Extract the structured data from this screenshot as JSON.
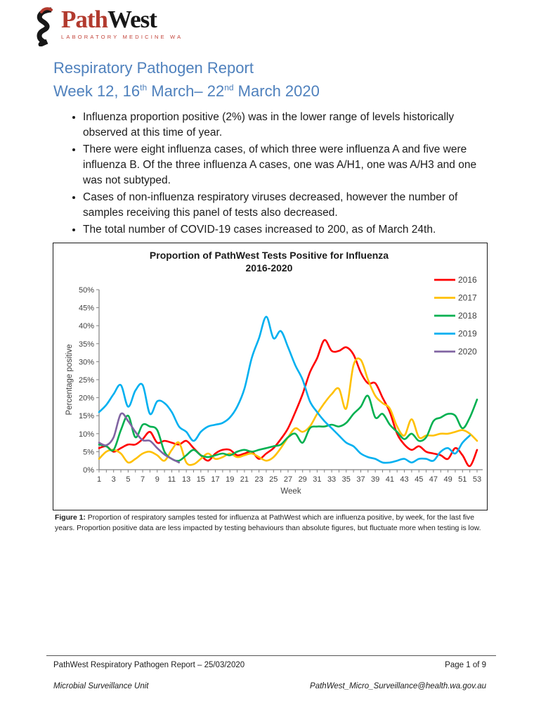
{
  "logo": {
    "brand_part1": "Path",
    "brand_part2": "West",
    "tagline": "LABORATORY MEDICINE WA"
  },
  "title": {
    "line1": "Respiratory Pathogen Report",
    "week_prefix": "Week 12, 16",
    "sup1": "th",
    "mid": " March– 22",
    "sup2": "nd",
    "end": " March 2020"
  },
  "bullets": [
    "Influenza proportion positive (2%) was in the lower range of levels historically observed at this time of year.",
    "There were eight influenza cases, of which three were influenza A and five were influenza B. Of the three influenza A cases, one was A/H1, one was A/H3 and one was not subtyped.",
    "Cases of non-influenza respiratory viruses decreased, however the number of samples receiving this panel of tests also decreased.",
    "The total number of COVID-19 cases increased to 200, as of March 24th."
  ],
  "figure": {
    "caption_label": "Figure 1:",
    "caption_text": " Proportion of respiratory samples tested for influenza at PathWest which are influenza positive, by week, for the last five years. Proportion positive data are less impacted by testing behaviours than absolute figures, but fluctuate more when testing is low."
  },
  "footer": {
    "left1": "PathWest Respiratory Pathogen Report – 25/03/2020",
    "right1": "Page 1 of 9",
    "left2": "Microbial Surveillance Unit",
    "right2": "PathWest_Micro_Surveillance@health.wa.gov.au"
  },
  "chart_data": {
    "type": "line",
    "title": "Proportion of PathWest Tests Positive for Influenza",
    "subtitle": "2016-2020",
    "xlabel": "Week",
    "ylabel": "Percentage positive",
    "ylim": [
      0,
      50
    ],
    "ytick_step": 5,
    "ytick_suffix": "%",
    "x_range": [
      1,
      53
    ],
    "xtick_labels": [
      1,
      3,
      5,
      7,
      9,
      11,
      13,
      15,
      17,
      19,
      21,
      23,
      25,
      27,
      29,
      31,
      33,
      35,
      37,
      39,
      41,
      43,
      45,
      47,
      49,
      51,
      53
    ],
    "grid": false,
    "legend_position": "right-top",
    "series": [
      {
        "name": "2016",
        "color": "#FF0000",
        "start_week": 1,
        "values": [
          6,
          6.5,
          5,
          6,
          7,
          7,
          8.5,
          10.5,
          7.5,
          8,
          7.5,
          7,
          8,
          6,
          4,
          2.5,
          4.5,
          5.5,
          5.5,
          4,
          4.5,
          5,
          3,
          4.5,
          6,
          8.5,
          11.5,
          16,
          21,
          27,
          31,
          36,
          33,
          33,
          34,
          32,
          27,
          24,
          24,
          20,
          16,
          10,
          7,
          5.5,
          6.5,
          5,
          4.5,
          4,
          3,
          6,
          4,
          1,
          5.5
        ]
      },
      {
        "name": "2017",
        "color": "#FFC000",
        "start_week": 1,
        "values": [
          3,
          5,
          5.5,
          4.5,
          2,
          3,
          4.5,
          5,
          4,
          2.5,
          5.5,
          7.5,
          2,
          1.5,
          3,
          4.5,
          3,
          3.5,
          4.5,
          3.5,
          4,
          4.5,
          3.5,
          2.5,
          3.5,
          6,
          9,
          11.5,
          10.5,
          12,
          15.5,
          18.5,
          21,
          22.5,
          17,
          29,
          30.5,
          25,
          20.5,
          18.5,
          17,
          12,
          9.5,
          14,
          9,
          9.5,
          9.5,
          10,
          10,
          10.5,
          11,
          10,
          8
        ]
      },
      {
        "name": "2018",
        "color": "#00B050",
        "start_week": 1,
        "values": [
          7,
          6.5,
          5.5,
          11,
          15,
          9,
          12.5,
          12,
          11,
          5,
          3,
          2.5,
          4,
          5.5,
          4,
          3.5,
          4,
          4.5,
          4,
          5,
          5.5,
          5,
          5.5,
          6,
          6.5,
          7,
          9,
          10,
          7.5,
          11.5,
          12,
          12,
          12.5,
          12,
          13,
          15.5,
          17.5,
          20.5,
          14.5,
          15.5,
          12.5,
          10.5,
          8.5,
          10,
          8,
          9,
          13.5,
          14.5,
          15.5,
          15,
          11.5,
          14.5,
          19.5
        ]
      },
      {
        "name": "2019",
        "color": "#00B0F0",
        "start_week": 1,
        "values": [
          16,
          18,
          21,
          23.5,
          17.5,
          22,
          23.5,
          15.5,
          19,
          18.5,
          16,
          12,
          10.5,
          8,
          10.5,
          12,
          12.5,
          13,
          14.5,
          17.5,
          22.5,
          31,
          36.5,
          42.5,
          36.5,
          38.5,
          34,
          29,
          25,
          19,
          16,
          13.5,
          11.5,
          9.5,
          7.5,
          6.5,
          4.5,
          3.5,
          3,
          2,
          2,
          2.5,
          3,
          2,
          3,
          3,
          2.5,
          5,
          6,
          4.5,
          7.5,
          9.5
        ]
      },
      {
        "name": "2020",
        "color": "#8064A2",
        "start_week": 1,
        "values": [
          7.5,
          6.8,
          9,
          15.5,
          13.5,
          10.5,
          8.2,
          8,
          6,
          4.2,
          3,
          2
        ]
      }
    ]
  }
}
